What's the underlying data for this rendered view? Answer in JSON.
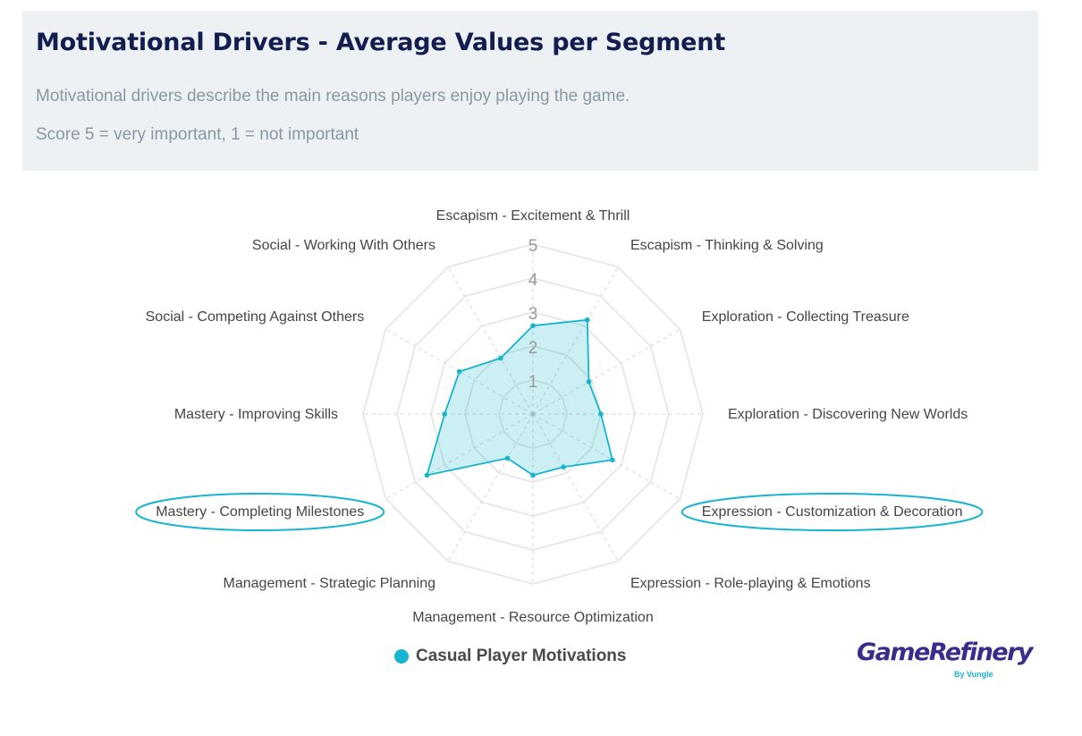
{
  "header": {
    "title": "Motivational Drivers - Average Values per Segment",
    "subtitle_line1": "Motivational drivers describe the main reasons players enjoy playing the game.",
    "subtitle_line2": "Score 5 = very important, 1 = not important"
  },
  "chart_data": {
    "type": "radar",
    "title": "Motivational Drivers - Average Values per Segment",
    "axes": [
      "Escapism - Excitement & Thrill",
      "Escapism - Thinking & Solving",
      "Exploration - Collecting Treasure",
      "Exploration - Discovering New Worlds",
      "Expression - Customization & Decoration",
      "Expression - Role-playing & Emotions",
      "Management - Resource Optimization",
      "Management - Strategic Planning",
      "Mastery - Completing Milestones",
      "Mastery - Improving Skills",
      "Social - Competing Against Others",
      "Social - Working With Others"
    ],
    "highlighted_axes": [
      "Expression - Customization & Decoration",
      "Mastery - Completing Milestones"
    ],
    "range": [
      0,
      5
    ],
    "ticks": [
      "1",
      "2",
      "3",
      "4",
      "5"
    ],
    "series": [
      {
        "name": "Casual Player Motivations",
        "color": "#17b4cf",
        "values": [
          2.6,
          3.2,
          1.9,
          2.0,
          2.7,
          1.8,
          1.8,
          1.5,
          3.6,
          2.6,
          2.5,
          1.9
        ]
      }
    ]
  },
  "legend": {
    "label": "Casual Player Motivations"
  },
  "logo": {
    "main": "GameRefinery",
    "sub": "By Vungle"
  }
}
